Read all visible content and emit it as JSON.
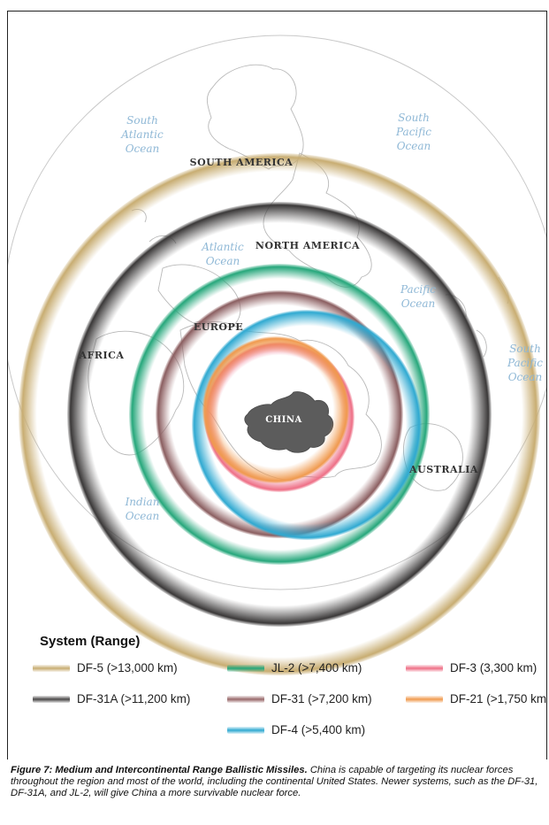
{
  "map": {
    "oceans": [
      {
        "key": "south_atlantic",
        "lines": [
          "South",
          "Atlantic",
          "Ocean"
        ]
      },
      {
        "key": "south_pacific_top",
        "lines": [
          "South",
          "Pacific",
          "Ocean"
        ]
      },
      {
        "key": "atlantic",
        "lines": [
          "Atlantic",
          "Ocean"
        ]
      },
      {
        "key": "pacific",
        "lines": [
          "Pacific",
          "Ocean"
        ]
      },
      {
        "key": "south_pacific_right",
        "lines": [
          "South",
          "Pacific",
          "Ocean"
        ]
      },
      {
        "key": "indian",
        "lines": [
          "Indian",
          "Ocean"
        ]
      }
    ],
    "continents": {
      "south_america": "SOUTH AMERICA",
      "north_america": "NORTH AMERICA",
      "europe": "EUROPE",
      "africa": "AFRICA",
      "australia": "AUSTRALIA",
      "china": "CHINA"
    },
    "colors": {
      "ocean_text": "#8fb8d6",
      "land_outline": "#b9b9b9",
      "china_fill": "#5c5c5c"
    }
  },
  "legend": {
    "title": "System (Range)",
    "items": [
      {
        "label": "DF-5 (>13,000 km)",
        "color": "#c8ad72"
      },
      {
        "label": "JL-2 (>7,400 km)",
        "color": "#26a77b"
      },
      {
        "label": "DF-3 (3,300 km)",
        "color": "#ee6f86"
      },
      {
        "label": "DF-31A (>11,200 km)",
        "color": "#4a4848"
      },
      {
        "label": "DF-31 (>7,200 km)",
        "color": "#98686a"
      },
      {
        "label": "DF-21 (>1,750 km)",
        "color": "#f09a4e"
      },
      {
        "label": "DF-4 (>5,400 km)",
        "color": "#2fa9d1"
      }
    ]
  },
  "caption": {
    "title": "Figure 7: Medium and Intercontinental Range Ballistic Missiles.",
    "body": "China is capable of targeting its nuclear forces throughout the region and most of the world, including the continental United States. Newer systems, such as the DF-31, DF-31A, and JL-2, will give China a more survivable nuclear force."
  }
}
